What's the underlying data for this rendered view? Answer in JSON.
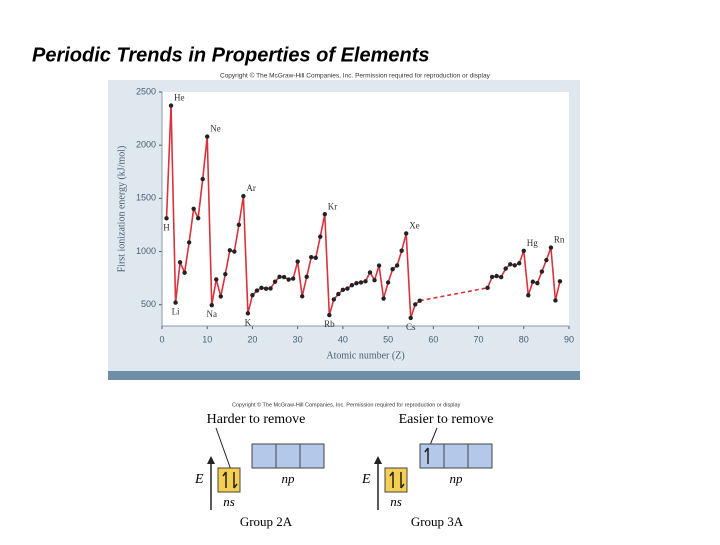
{
  "slide_title": "Periodic Trends in Properties of Elements",
  "chart_copyright": "Copyright © The McGraw-Hill Companies, Inc. Permission required for reproduction or display",
  "chart_data": {
    "type": "line",
    "x_label": "Atomic number (Z)",
    "y_label": "First ionization energy (kJ/mol)",
    "xlim": [
      0,
      90
    ],
    "xticks": [
      0,
      10,
      20,
      30,
      40,
      50,
      60,
      70,
      80,
      90
    ],
    "ylim": [
      300,
      2500
    ],
    "yticks": [
      500,
      1000,
      1500,
      2000,
      2500
    ],
    "grid": false,
    "series": [
      {
        "color": "#d8333c",
        "marker_color": "#222222",
        "x": [
          1,
          2,
          3,
          4,
          5,
          6,
          7,
          8,
          9,
          10,
          11,
          12,
          13,
          14,
          15,
          16,
          17,
          18,
          19,
          20,
          21,
          22,
          23,
          24,
          25,
          26,
          27,
          28,
          29,
          30,
          31,
          32,
          33,
          34,
          35,
          36,
          37,
          38,
          39,
          40,
          41,
          42,
          43,
          44,
          45,
          46,
          47,
          48,
          49,
          50,
          51,
          52,
          53,
          54,
          55,
          56,
          57,
          72,
          73,
          74,
          75,
          76,
          77,
          78,
          79,
          80,
          81,
          82,
          83,
          84,
          85,
          86,
          87,
          88
        ],
        "values": [
          1312,
          2372,
          520,
          899,
          801,
          1086,
          1402,
          1314,
          1681,
          2081,
          496,
          738,
          578,
          787,
          1012,
          1000,
          1251,
          1521,
          419,
          590,
          633,
          659,
          651,
          653,
          717,
          762,
          760,
          737,
          746,
          906,
          579,
          762,
          947,
          941,
          1140,
          1351,
          403,
          550,
          600,
          640,
          652,
          684,
          702,
          710,
          720,
          804,
          731,
          868,
          558,
          709,
          834,
          869,
          1008,
          1170,
          376,
          503,
          538,
          659,
          761,
          770,
          760,
          840,
          880,
          870,
          890,
          1007,
          589,
          716,
          703,
          812,
          920,
          1037,
          540,
          720
        ],
        "point_labels": [
          "H",
          "He",
          "Li",
          null,
          null,
          null,
          null,
          null,
          null,
          "Ne",
          "Na",
          null,
          null,
          null,
          null,
          null,
          null,
          "Ar",
          "K",
          null,
          null,
          null,
          null,
          null,
          null,
          null,
          null,
          null,
          null,
          null,
          null,
          null,
          null,
          null,
          null,
          "Kr",
          "Rb",
          null,
          null,
          null,
          null,
          null,
          null,
          null,
          null,
          null,
          null,
          null,
          null,
          null,
          null,
          null,
          null,
          "Xe",
          "Cs",
          null,
          null,
          null,
          null,
          null,
          null,
          null,
          null,
          null,
          null,
          "Hg",
          null,
          null,
          null,
          null,
          null,
          "Rn",
          null,
          null
        ]
      }
    ]
  },
  "diagram": {
    "copyright": "Copyright © The McGraw-Hill Companies, Inc. Permission required for reproduction or display",
    "left": {
      "caption": "Harder to remove",
      "energy": "E",
      "ns": "ns",
      "np": "np",
      "group": "Group 2A"
    },
    "right": {
      "caption": "Easier to remove",
      "energy": "E",
      "ns": "ns",
      "np": "np",
      "group": "Group 3A"
    }
  }
}
